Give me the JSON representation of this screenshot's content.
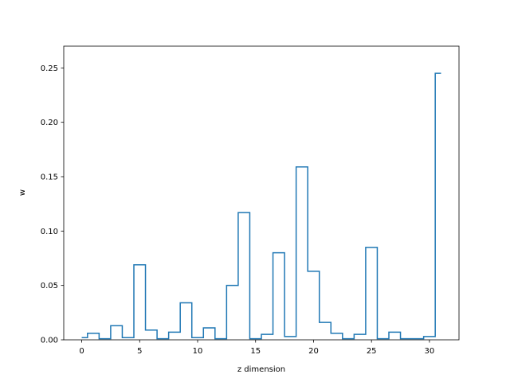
{
  "chart_data": {
    "type": "step",
    "title": "",
    "xlabel": "z dimension",
    "ylabel": "w",
    "xlim": [
      -1.55,
      32.55
    ],
    "ylim": [
      0,
      0.27
    ],
    "xticks": [
      0,
      5,
      10,
      15,
      20,
      25,
      30
    ],
    "yticks": [
      0.0,
      0.05,
      0.1,
      0.15,
      0.2,
      0.25
    ],
    "xtick_labels": [
      "0",
      "5",
      "10",
      "15",
      "20",
      "25",
      "30"
    ],
    "ytick_labels": [
      "0.00",
      "0.05",
      "0.10",
      "0.15",
      "0.20",
      "0.25"
    ],
    "grid": false,
    "line_color": "#1f77b4",
    "step_where": "mid",
    "x": [
      0,
      1,
      2,
      3,
      4,
      5,
      6,
      7,
      8,
      9,
      10,
      11,
      12,
      13,
      14,
      15,
      16,
      17,
      18,
      19,
      20,
      21,
      22,
      23,
      24,
      25,
      26,
      27,
      28,
      29,
      30,
      31
    ],
    "values": [
      0.002,
      0.006,
      0.001,
      0.013,
      0.002,
      0.069,
      0.009,
      0.001,
      0.007,
      0.034,
      0.002,
      0.011,
      0.001,
      0.05,
      0.117,
      0.001,
      0.005,
      0.08,
      0.003,
      0.159,
      0.063,
      0.016,
      0.006,
      0.001,
      0.005,
      0.085,
      0.001,
      0.007,
      0.001,
      0.001,
      0.003,
      0.245
    ]
  }
}
